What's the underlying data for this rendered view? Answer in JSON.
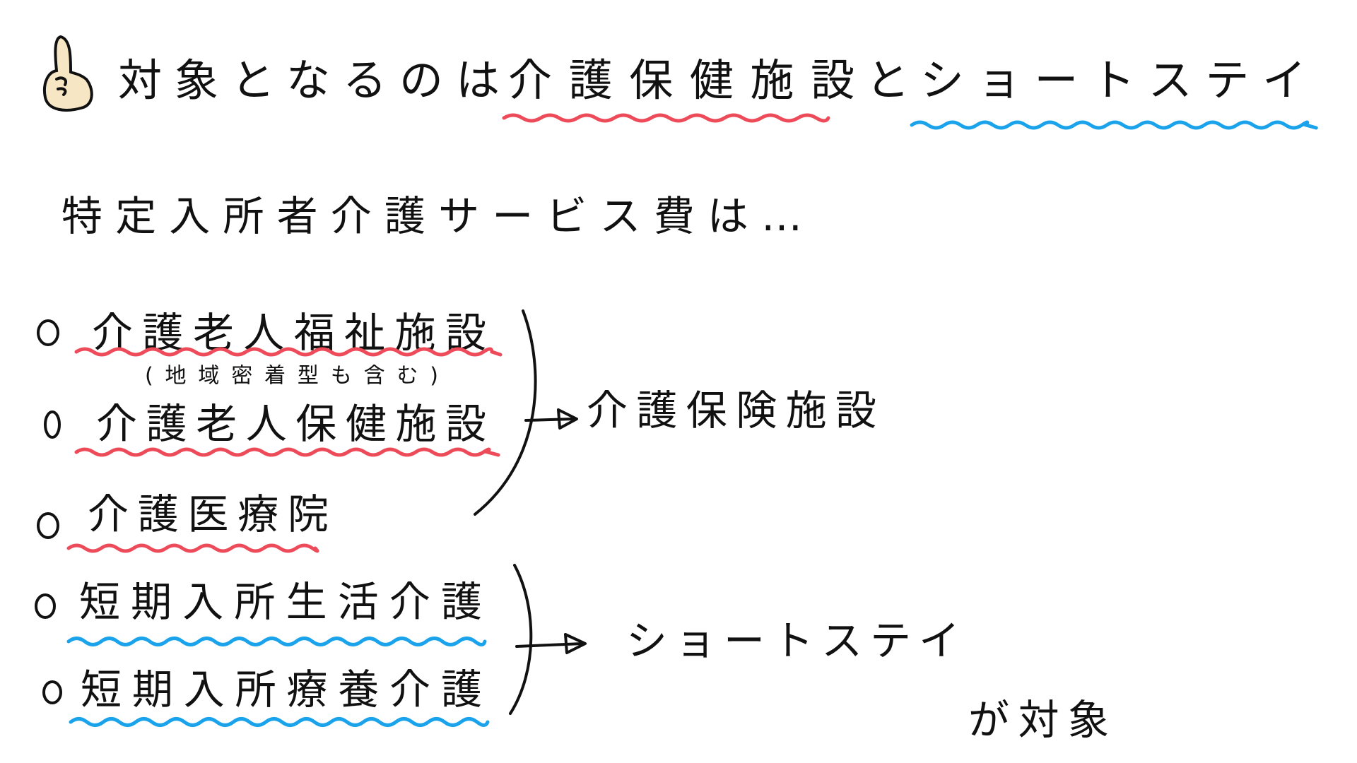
{
  "header": {
    "title": [
      "対象となるのは",
      "介護保健施設",
      "と",
      "ショートステイ"
    ]
  },
  "intro": "特定入所者介護サービス費は…",
  "groups": [
    {
      "items": [
        {
          "label": "介護老人福祉施設",
          "note": "(地域密着型も含む)"
        },
        {
          "label": "介護老人保健施設"
        },
        {
          "label": "介護医療院"
        }
      ],
      "target": "介護保険施設"
    },
    {
      "items": [
        {
          "label": "短期入所生活介護"
        },
        {
          "label": "短期入所療養介護"
        }
      ],
      "target": "ショートステイ"
    }
  ],
  "footer": "が対象"
}
